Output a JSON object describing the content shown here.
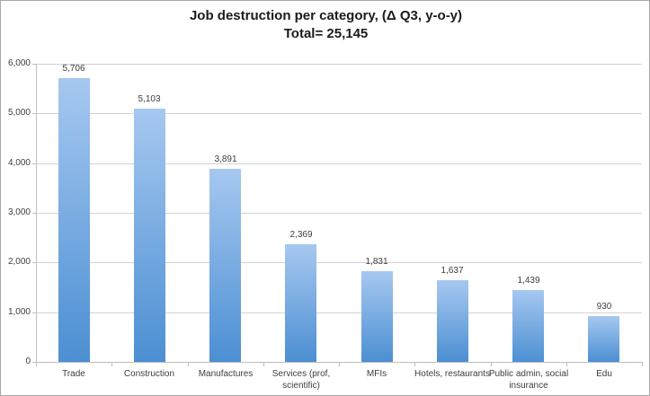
{
  "chart_data": {
    "type": "bar",
    "title": "Job destruction per category, (Δ Q3, y-o-y)",
    "subtitle": "Total= 25,145",
    "total": 25145,
    "categories": [
      "Trade",
      "Construction",
      "Manufactures",
      "Services (prof, scientific)",
      "MFIs",
      "Hotels, restaurants",
      "Public admin, social insurance",
      "Edu"
    ],
    "values": [
      5706,
      5103,
      3891,
      2369,
      1831,
      1637,
      1439,
      930
    ],
    "value_labels": [
      "5,706",
      "5,103",
      "3,891",
      "2,369",
      "1,831",
      "1,637",
      "1,439",
      "930"
    ],
    "xlabel": "",
    "ylabel": "",
    "ylim": [
      0,
      6000
    ],
    "ytick_step": 1000,
    "ytick_labels": [
      "0",
      "1,000",
      "2,000",
      "3,000",
      "4,000",
      "5,000",
      "6,000"
    ],
    "grid": true,
    "legend": "none",
    "colors": {
      "bar_gradient_top": "#a6c8f0",
      "bar_gradient_bottom": "#4c8fd3",
      "gridline": "#d2d2d2",
      "axis": "#bfbfbf",
      "label_text": "#3d3d3d",
      "title_text": "#1a1a1a"
    }
  }
}
